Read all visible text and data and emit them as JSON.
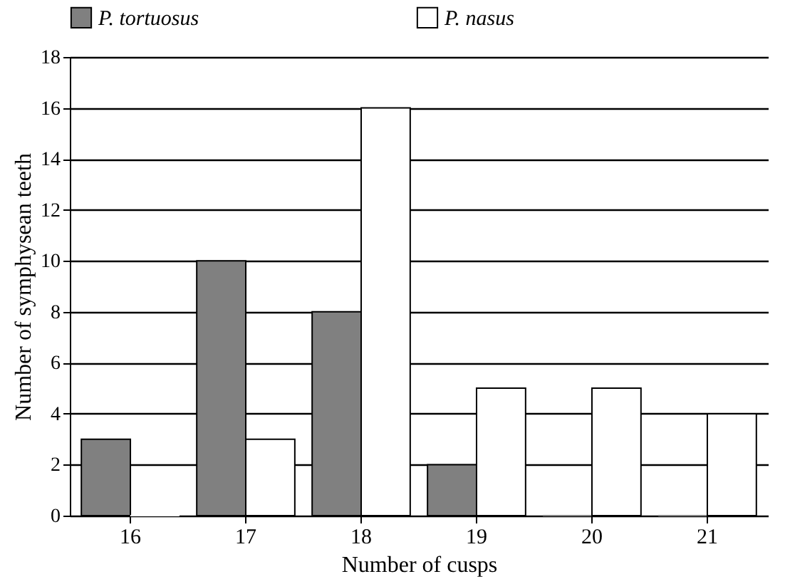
{
  "chart_data": {
    "type": "bar",
    "xlabel": "Number of cusps",
    "ylabel": "Number of symphysean teeth",
    "categories": [
      "16",
      "17",
      "18",
      "19",
      "20",
      "21"
    ],
    "series": [
      {
        "name": "P. tortuosus",
        "color": "#808080",
        "values": [
          3,
          10,
          8,
          2,
          0,
          0
        ]
      },
      {
        "name": "P. nasus",
        "color": "#ffffff",
        "values": [
          0,
          3,
          16,
          5,
          5,
          4
        ]
      }
    ],
    "ylim": [
      0,
      18
    ],
    "yticks": [
      0,
      2,
      4,
      6,
      8,
      10,
      12,
      14,
      16,
      18
    ],
    "grid": "y",
    "legend": "top"
  }
}
